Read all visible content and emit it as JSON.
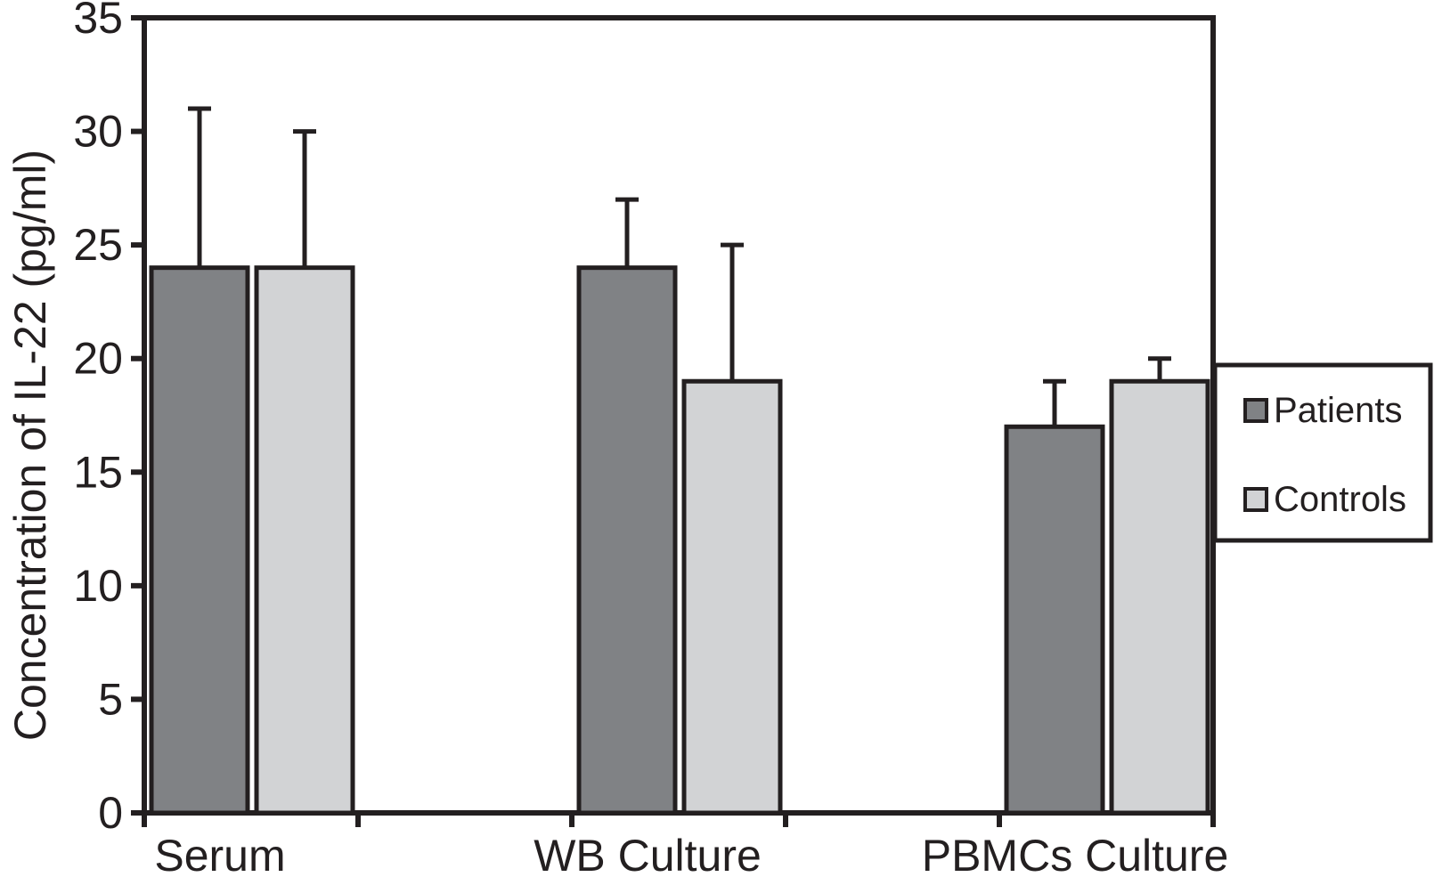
{
  "figure": {
    "background": "#ffffff",
    "line_color": "#231f20"
  },
  "chart_data": {
    "type": "bar",
    "title": "",
    "xlabel": "",
    "ylabel": "Concentration of IL-22 (pg/ml)",
    "ylim": [
      0,
      35
    ],
    "ytick_interval": 5,
    "yticks": [
      0,
      5,
      10,
      15,
      20,
      25,
      30,
      35
    ],
    "categories": [
      "Serum",
      "WB Culture",
      "PBMCs Culture"
    ],
    "series": [
      {
        "name": "Patients",
        "color": "#808285",
        "values": [
          24,
          24,
          17
        ],
        "error_plus": [
          7,
          3,
          2
        ]
      },
      {
        "name": "Controls",
        "color": "#d2d3d5",
        "values": [
          24,
          19,
          19
        ],
        "error_plus": [
          6,
          6,
          1
        ]
      }
    ],
    "error_bars": "upper-only",
    "legend_position": "right-outside",
    "grid": false
  }
}
